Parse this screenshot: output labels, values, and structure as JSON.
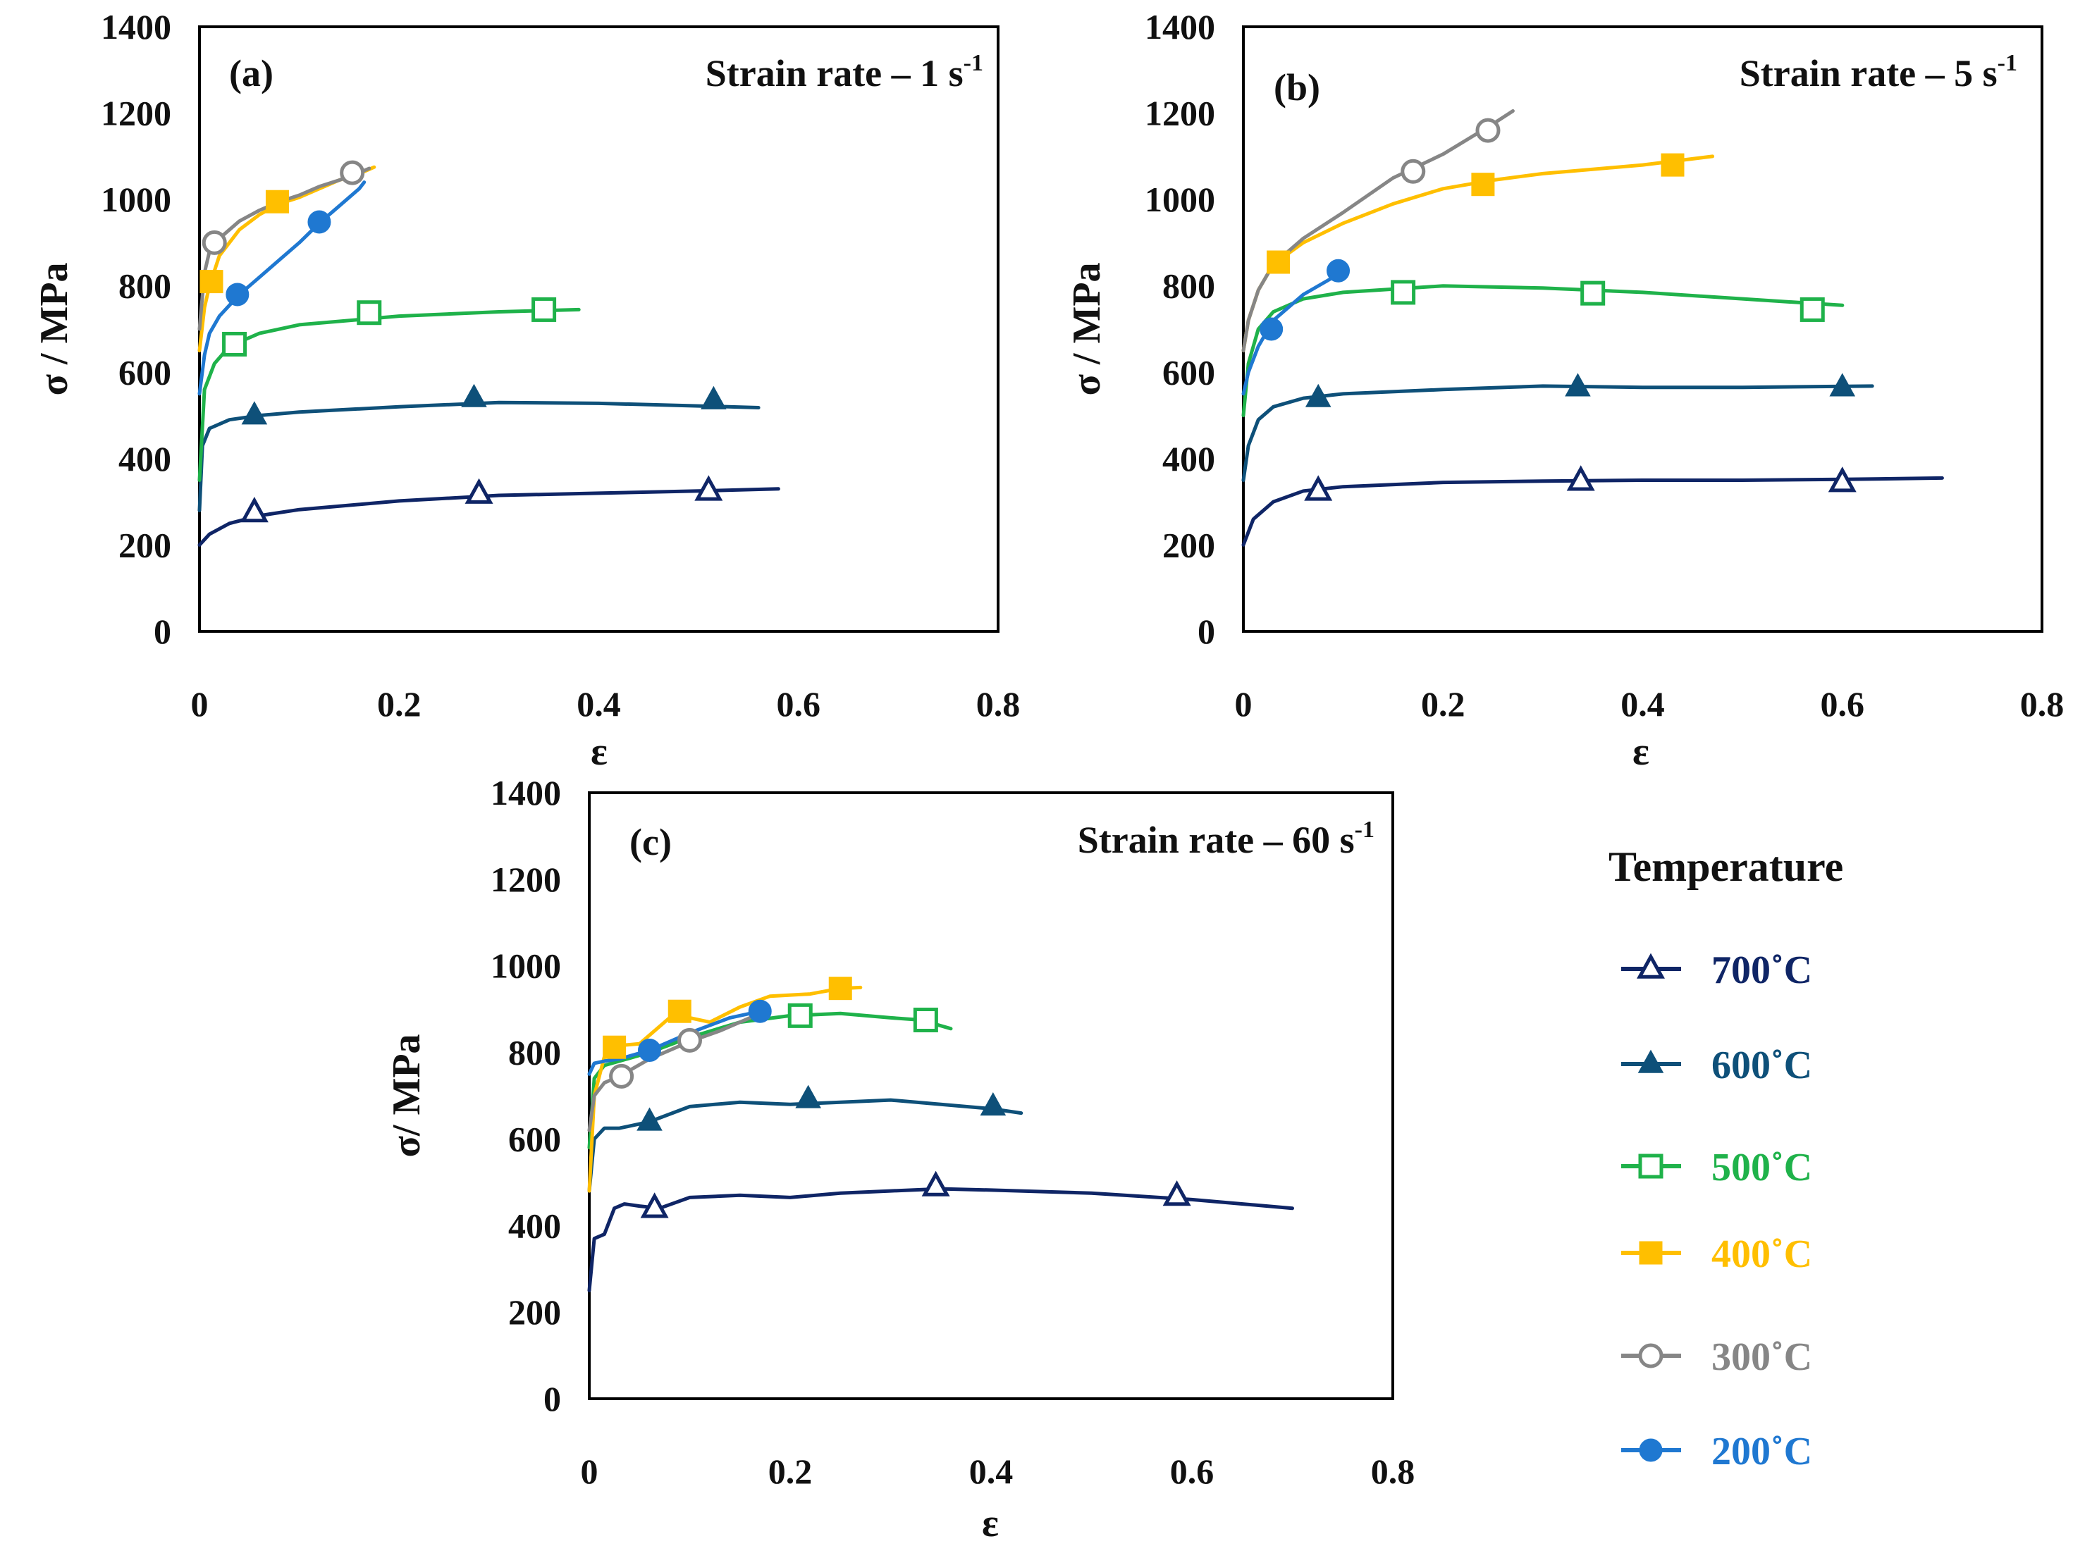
{
  "colors": {
    "700": "#0f2566",
    "600": "#0e5079",
    "500": "#1fb24a",
    "400": "#ffbf00",
    "300": "#868686",
    "200": "#1f78d1"
  },
  "legend": {
    "title": "Temperature",
    "items": [
      {
        "key": "700",
        "label": "700˚C",
        "marker": "triangle-open",
        "icon": "open-triangle-icon"
      },
      {
        "key": "600",
        "label": "600˚C",
        "marker": "triangle-filled",
        "icon": "filled-triangle-icon"
      },
      {
        "key": "500",
        "label": "500˚C",
        "marker": "square-open",
        "icon": "open-square-icon"
      },
      {
        "key": "400",
        "label": "400˚C",
        "marker": "square-filled",
        "icon": "filled-square-icon"
      },
      {
        "key": "300",
        "label": "300˚C",
        "marker": "circle-open",
        "icon": "open-circle-icon"
      },
      {
        "key": "200",
        "label": "200˚C",
        "marker": "circle-filled",
        "icon": "filled-circle-icon"
      }
    ]
  },
  "chart_data": [
    {
      "type": "line",
      "panel": "(a)",
      "rate_label": "Strain rate – 1 s",
      "rate_sup": "-1",
      "xlabel": "ε",
      "ylabel": "σ / MPa",
      "xlim": [
        0,
        0.8
      ],
      "ylim": [
        0,
        1400
      ],
      "xticks": [
        "0",
        "0.2",
        "0.4",
        "0.6",
        "0.8"
      ],
      "yticks": [
        "0",
        "200",
        "400",
        "600",
        "800",
        "1000",
        "1200",
        "1400"
      ],
      "series": [
        {
          "name": "700˚C",
          "key": "700",
          "x": [
            0,
            0.01,
            0.03,
            0.06,
            0.1,
            0.2,
            0.3,
            0.4,
            0.5,
            0.58
          ],
          "y": [
            200,
            225,
            250,
            268,
            282,
            302,
            315,
            320,
            325,
            330
          ],
          "markers_x": [
            0.055,
            0.28,
            0.51
          ],
          "markers_y": [
            275,
            318,
            325
          ]
        },
        {
          "name": "600˚C",
          "key": "600",
          "x": [
            0,
            0.003,
            0.01,
            0.03,
            0.06,
            0.1,
            0.2,
            0.3,
            0.4,
            0.5,
            0.56
          ],
          "y": [
            280,
            430,
            470,
            490,
            500,
            508,
            520,
            530,
            528,
            522,
            518
          ],
          "markers_x": [
            0.055,
            0.275,
            0.515
          ],
          "markers_y": [
            500,
            540,
            535
          ]
        },
        {
          "name": "500˚C",
          "key": "500",
          "x": [
            0,
            0.005,
            0.015,
            0.03,
            0.06,
            0.1,
            0.2,
            0.3,
            0.38
          ],
          "y": [
            350,
            560,
            620,
            660,
            690,
            710,
            730,
            740,
            745
          ],
          "markers_x": [
            0.035,
            0.17,
            0.345
          ],
          "markers_y": [
            665,
            738,
            745
          ]
        },
        {
          "name": "400˚C",
          "key": "400",
          "x": [
            0,
            0.005,
            0.01,
            0.02,
            0.04,
            0.06,
            0.08,
            0.1,
            0.12,
            0.14,
            0.16,
            0.175
          ],
          "y": [
            650,
            750,
            800,
            870,
            930,
            965,
            990,
            1005,
            1025,
            1045,
            1060,
            1075
          ],
          "markers_x": [
            0.012,
            0.078
          ],
          "markers_y": [
            810,
            995
          ]
        },
        {
          "name": "300˚C",
          "key": "300",
          "x": [
            0,
            0.005,
            0.01,
            0.02,
            0.04,
            0.06,
            0.08,
            0.1,
            0.12,
            0.14,
            0.16,
            0.17
          ],
          "y": [
            700,
            830,
            880,
            910,
            950,
            975,
            995,
            1010,
            1030,
            1045,
            1062,
            1072
          ],
          "markers_x": [
            0.015,
            0.153
          ],
          "markers_y": [
            900,
            1062
          ]
        },
        {
          "name": "200˚C",
          "key": "200",
          "x": [
            0,
            0.005,
            0.01,
            0.02,
            0.04,
            0.06,
            0.08,
            0.1,
            0.12,
            0.14,
            0.16,
            0.165
          ],
          "y": [
            550,
            640,
            690,
            730,
            780,
            820,
            860,
            900,
            945,
            985,
            1025,
            1040
          ],
          "markers_x": [
            0.038,
            0.12
          ],
          "markers_y": [
            780,
            948
          ]
        }
      ]
    },
    {
      "type": "line",
      "panel": "(b)",
      "rate_label": "Strain rate – 5 s",
      "rate_sup": "-1",
      "xlabel": "ε",
      "ylabel": "σ / MPa",
      "xlim": [
        0,
        0.8
      ],
      "ylim": [
        0,
        1400
      ],
      "xticks": [
        "0",
        "0.2",
        "0.4",
        "0.6",
        "0.8"
      ],
      "yticks": [
        "0",
        "200",
        "400",
        "600",
        "800",
        "1000",
        "1200",
        "1400"
      ],
      "series": [
        {
          "name": "700˚C",
          "key": "700",
          "x": [
            0,
            0.01,
            0.03,
            0.06,
            0.1,
            0.2,
            0.3,
            0.4,
            0.5,
            0.6,
            0.7
          ],
          "y": [
            200,
            260,
            300,
            325,
            335,
            345,
            348,
            350,
            350,
            352,
            355
          ],
          "markers_x": [
            0.075,
            0.338,
            0.6
          ],
          "markers_y": [
            325,
            348,
            345
          ]
        },
        {
          "name": "600˚C",
          "key": "600",
          "x": [
            0,
            0.005,
            0.015,
            0.03,
            0.06,
            0.1,
            0.2,
            0.3,
            0.4,
            0.5,
            0.63
          ],
          "y": [
            350,
            430,
            490,
            520,
            540,
            550,
            560,
            568,
            565,
            565,
            568
          ],
          "markers_x": [
            0.075,
            0.335,
            0.6
          ],
          "markers_y": [
            540,
            565,
            565
          ]
        },
        {
          "name": "500˚C",
          "key": "500",
          "x": [
            0,
            0.005,
            0.015,
            0.03,
            0.06,
            0.1,
            0.2,
            0.3,
            0.4,
            0.5,
            0.6
          ],
          "y": [
            500,
            620,
            700,
            740,
            770,
            785,
            800,
            795,
            785,
            770,
            755
          ],
          "markers_x": [
            0.16,
            0.35,
            0.57
          ],
          "markers_y": [
            785,
            783,
            745
          ]
        },
        {
          "name": "400˚C",
          "key": "400",
          "x": [
            0,
            0.005,
            0.015,
            0.03,
            0.06,
            0.1,
            0.15,
            0.2,
            0.25,
            0.3,
            0.4,
            0.47
          ],
          "y": [
            650,
            720,
            790,
            850,
            900,
            945,
            990,
            1025,
            1045,
            1060,
            1080,
            1100
          ],
          "markers_x": [
            0.035,
            0.24,
            0.43
          ],
          "markers_y": [
            855,
            1035,
            1080
          ]
        },
        {
          "name": "300˚C",
          "key": "300",
          "x": [
            0,
            0.005,
            0.015,
            0.03,
            0.06,
            0.1,
            0.15,
            0.2,
            0.25,
            0.27
          ],
          "y": [
            650,
            720,
            790,
            850,
            910,
            970,
            1050,
            1105,
            1175,
            1205
          ],
          "markers_x": [
            0.17,
            0.245
          ],
          "markers_y": [
            1065,
            1160
          ]
        },
        {
          "name": "200˚C",
          "key": "200",
          "x": [
            0,
            0.005,
            0.015,
            0.03,
            0.06,
            0.09,
            0.1
          ],
          "y": [
            550,
            600,
            660,
            720,
            780,
            820,
            835
          ],
          "markers_x": [
            0.028,
            0.095
          ],
          "markers_y": [
            700,
            835
          ]
        }
      ]
    },
    {
      "type": "line",
      "panel": "(c)",
      "rate_label": "Strain rate – 60 s",
      "rate_sup": "-1",
      "xlabel": "ε",
      "ylabel": "σ/ MPa",
      "xlim": [
        0,
        0.8
      ],
      "ylim": [
        0,
        1400
      ],
      "xticks": [
        "0",
        "0.2",
        "0.4",
        "0.6",
        "0.8"
      ],
      "yticks": [
        "0",
        "200",
        "400",
        "600",
        "800",
        "1000",
        "1200",
        "1400"
      ],
      "series": [
        {
          "name": "700˚C",
          "key": "700",
          "x": [
            0,
            0.005,
            0.015,
            0.025,
            0.035,
            0.05,
            0.07,
            0.1,
            0.15,
            0.2,
            0.25,
            0.3,
            0.35,
            0.4,
            0.5,
            0.6,
            0.7
          ],
          "y": [
            250,
            370,
            380,
            440,
            450,
            445,
            440,
            465,
            470,
            465,
            475,
            480,
            485,
            482,
            475,
            460,
            440
          ],
          "markers_x": [
            0.065,
            0.345,
            0.585
          ],
          "markers_y": [
            440,
            490,
            468
          ]
        },
        {
          "name": "600˚C",
          "key": "600",
          "x": [
            0,
            0.005,
            0.015,
            0.03,
            0.06,
            0.1,
            0.15,
            0.2,
            0.25,
            0.3,
            0.35,
            0.4,
            0.43
          ],
          "y": [
            480,
            600,
            625,
            625,
            640,
            675,
            685,
            680,
            685,
            690,
            680,
            670,
            660
          ],
          "markers_x": [
            0.06,
            0.218,
            0.402
          ],
          "markers_y": [
            640,
            692,
            675
          ]
        },
        {
          "name": "500˚C",
          "key": "500",
          "x": [
            0,
            0.005,
            0.015,
            0.03,
            0.06,
            0.1,
            0.15,
            0.2,
            0.25,
            0.3,
            0.33,
            0.36
          ],
          "y": [
            580,
            740,
            770,
            780,
            800,
            835,
            870,
            885,
            890,
            880,
            875,
            855
          ],
          "markers_x": [
            0.21,
            0.335
          ],
          "markers_y": [
            885,
            875
          ]
        },
        {
          "name": "400˚C",
          "key": "400",
          "x": [
            0,
            0.005,
            0.015,
            0.025,
            0.05,
            0.08,
            0.1,
            0.12,
            0.15,
            0.18,
            0.22,
            0.25,
            0.27
          ],
          "y": [
            480,
            700,
            790,
            815,
            820,
            880,
            880,
            870,
            905,
            930,
            935,
            948,
            950
          ],
          "markers_x": [
            0.025,
            0.09,
            0.25
          ],
          "markers_y": [
            812,
            895,
            948
          ]
        },
        {
          "name": "300˚C",
          "key": "300",
          "x": [
            0,
            0.005,
            0.015,
            0.03,
            0.06,
            0.1,
            0.13,
            0.16
          ],
          "y": [
            620,
            700,
            730,
            745,
            785,
            825,
            850,
            880
          ],
          "markers_x": [
            0.032,
            0.1
          ],
          "markers_y": [
            745,
            828
          ]
        },
        {
          "name": "200˚C",
          "key": "200",
          "x": [
            0,
            0.005,
            0.015,
            0.03,
            0.06,
            0.1,
            0.14,
            0.17
          ],
          "y": [
            750,
            775,
            780,
            785,
            805,
            845,
            880,
            895
          ],
          "markers_x": [
            0.06,
            0.17
          ],
          "markers_y": [
            805,
            895
          ]
        }
      ]
    }
  ]
}
